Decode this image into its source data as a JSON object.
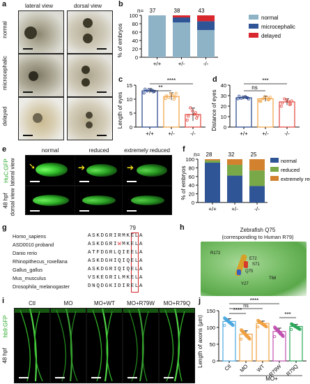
{
  "panels": {
    "a": {
      "label": "a",
      "col_heads": [
        "lateral view",
        "dorsal view"
      ],
      "row_labels": [
        "normal",
        "microcephalic",
        "delayed"
      ]
    },
    "b": {
      "label": "b",
      "n_prefix": "n=",
      "n_values": [
        "37",
        "38",
        "43"
      ],
      "ylabel": "% of embryos",
      "legend": [
        "normal",
        "microcephalic",
        "delayed"
      ],
      "colors": {
        "normal": "#8fb3c6",
        "microcephalic": "#2f5597",
        "delayed": "#d9272e"
      }
    },
    "c": {
      "label": "c",
      "ylabel": "Length of eyes",
      "sig_outer": "****",
      "sig_inner": "**"
    },
    "d": {
      "label": "d",
      "ylabel": "Distance of eyes",
      "sig_left": "ns",
      "sig_outer": "***"
    },
    "e": {
      "label": "e",
      "col_heads": [
        "normal",
        "reduced",
        "extremely reduced"
      ],
      "row_labels": [
        "lateral view",
        "dorsal view"
      ],
      "side_label_a": "48 hpf",
      "side_label_b": "HuC:GFP"
    },
    "f": {
      "label": "f",
      "n_prefix": "n=",
      "n_values": [
        "28",
        "32",
        "25"
      ],
      "ylabel": "% of embryos",
      "legend": [
        "normal",
        "reduced",
        "extremely reduced"
      ],
      "colors": {
        "normal": "#2f5597",
        "reduced": "#78a848",
        "extremely": "#d2812e"
      }
    },
    "g": {
      "label": "g",
      "position": "79",
      "species": [
        {
          "name": "Homo_sapiens",
          "pre": "ASKDGRI",
          "mid": "R",
          "post": "MKELA",
          "red": false
        },
        {
          "name": "ASD0010 proband",
          "pre": "ASKDGRI",
          "mid": "W",
          "post": "MKELA",
          "red": true
        },
        {
          "name": "Danio rerio",
          "pre": "ATFDGRL",
          "mid": "Q",
          "post": "IEELA",
          "red": false
        },
        {
          "name": "Rhinopithecus_roxellana",
          "pre": "ASKDGHI",
          "mid": "Q",
          "post": "IQELA",
          "red": false
        },
        {
          "name": "Gallus_gallus",
          "pre": "ASKDGRI",
          "mid": "Q",
          "post": "IQELA",
          "red": false
        },
        {
          "name": "Mus_musculus",
          "pre": "VSKEGRI",
          "mid": "L",
          "post": "MKELA",
          "red": false
        },
        {
          "name": "Drosophila_melanogaster",
          "pre": "DNQDGKI",
          "mid": "D",
          "post": "IRELA",
          "red": false
        }
      ]
    },
    "h": {
      "label": "h",
      "title_line1": "Zebrafish Q75",
      "title_line2": "(corresponding to Human R79)",
      "residues": [
        "R172",
        "E72",
        "S71",
        "Q75",
        "T68",
        "Y27"
      ]
    },
    "i": {
      "label": "i",
      "col_heads": [
        "Ctl",
        "MO",
        "MO+WT",
        "MO+R79W",
        "MO+R79Q"
      ],
      "side_label_a": "48 hpf",
      "side_label_b": "hb9:GFP"
    },
    "j": {
      "label": "j",
      "ylabel": "Length of axons (μm)",
      "groups": [
        "Ctl",
        "MO",
        "WT",
        "R79W",
        "R79Q"
      ],
      "group_caption": "MO+",
      "sig_top": "****",
      "sig_second": "ns",
      "sig_third": "****",
      "sig_right": "***"
    }
  },
  "chart_data": [
    {
      "panel": "b",
      "type": "bar",
      "stacked": true,
      "categories": [
        "+/+",
        "+/-",
        "-/-"
      ],
      "series": [
        {
          "name": "normal",
          "values": [
            100,
            83,
            65
          ]
        },
        {
          "name": "microcephalic",
          "values": [
            0,
            12,
            21
          ]
        },
        {
          "name": "delayed",
          "values": [
            0,
            5,
            14
          ]
        }
      ],
      "ylabel": "% of embryos",
      "ylim": [
        0,
        100
      ],
      "yticks": [
        0,
        20,
        40,
        60,
        80,
        100
      ],
      "legend_position": "right"
    },
    {
      "panel": "c",
      "type": "bar",
      "categories": [
        "+/+",
        "+/-",
        "-/-"
      ],
      "values": [
        13.0,
        11.0,
        4.5
      ],
      "errors": [
        0.8,
        1.3,
        2.3
      ],
      "colors": [
        "#1f3f8a",
        "#f0a040",
        "#e0413a"
      ],
      "points": [
        [
          12.2,
          12.6,
          13.1,
          13.4,
          12.9,
          13.6,
          12.8,
          13.2
        ],
        [
          10.2,
          10.8,
          11.4,
          11.9,
          10.6,
          11.2,
          12.1,
          10.0
        ],
        [
          2.5,
          3.2,
          4.6,
          5.8,
          6.9,
          3.9,
          4.1,
          5.2
        ]
      ],
      "ylabel": "Length of eyes",
      "ylim": [
        0,
        15
      ],
      "yticks": [
        0,
        5,
        10,
        15
      ]
    },
    {
      "panel": "d",
      "type": "bar",
      "categories": [
        "+/+",
        "+/-",
        "-/-"
      ],
      "values": [
        28,
        27,
        24
      ],
      "errors": [
        1.5,
        2.5,
        3.0
      ],
      "colors": [
        "#1f3f8a",
        "#f0a040",
        "#e0413a"
      ],
      "points": [
        [
          27,
          28,
          29,
          28.5,
          27.5,
          29.5,
          26.8,
          28.2
        ],
        [
          25,
          26.5,
          28,
          29,
          27,
          24.5,
          28.5,
          26
        ],
        [
          20,
          22,
          24.5,
          26,
          27,
          23,
          25,
          21.5
        ]
      ],
      "ylabel": "Distance of eyes",
      "ylim": [
        0,
        40
      ],
      "yticks": [
        0,
        10,
        20,
        30,
        40
      ]
    },
    {
      "panel": "f",
      "type": "bar",
      "stacked": true,
      "categories": [
        "+/+",
        "+/-",
        "-/-"
      ],
      "series": [
        {
          "name": "normal",
          "values": [
            92,
            62,
            38
          ]
        },
        {
          "name": "reduced",
          "values": [
            5,
            25,
            36
          ]
        },
        {
          "name": "extremely reduced",
          "values": [
            3,
            13,
            26
          ]
        }
      ],
      "ylabel": "% of embryos",
      "ylim": [
        0,
        100
      ],
      "yticks": [
        0,
        20,
        40,
        60,
        80,
        100
      ],
      "legend_position": "right"
    },
    {
      "panel": "j",
      "type": "bar",
      "categories": [
        "Ctl",
        "MO",
        "WT",
        "R79W",
        "R79Q"
      ],
      "values": [
        118,
        80,
        112,
        88,
        103
      ],
      "errors": [
        8,
        10,
        7,
        10,
        6
      ],
      "colors": [
        "#4aa8e0",
        "#f0a040",
        "#f0a040",
        "#c04fb0",
        "#2aa65a"
      ],
      "ylabel": "Length of axons (μm)",
      "ylim": [
        0,
        150
      ],
      "yticks": [
        0,
        50,
        100,
        150
      ]
    }
  ]
}
